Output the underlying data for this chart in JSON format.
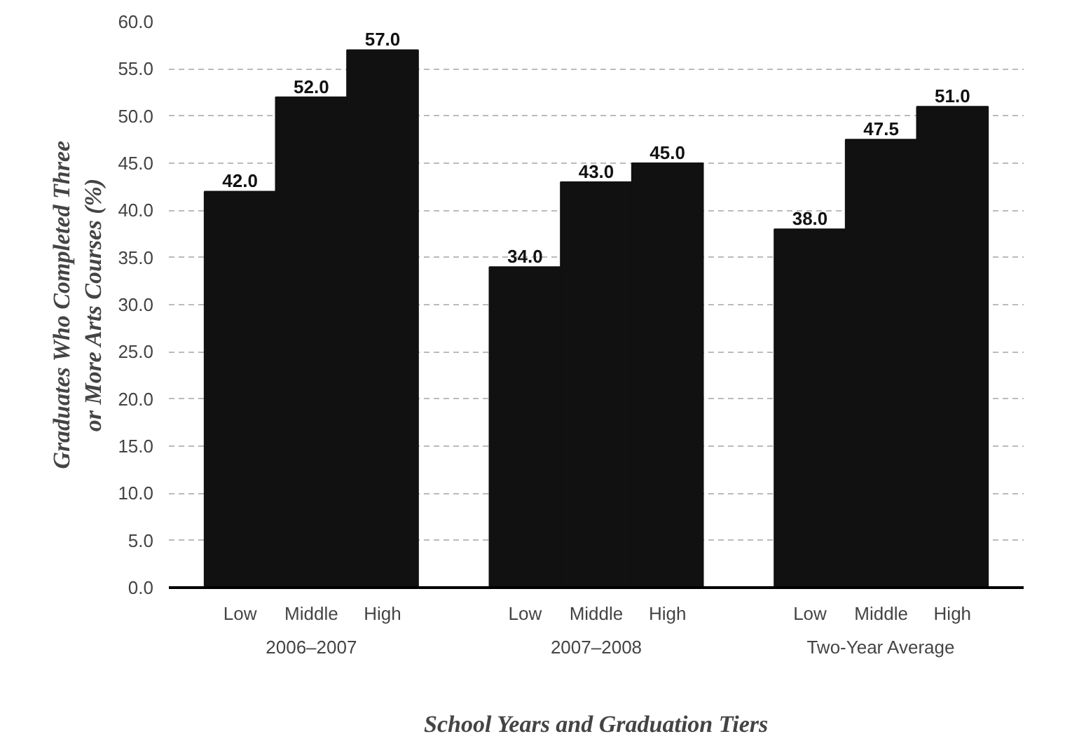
{
  "chart_data": {
    "type": "bar",
    "xlabel": "School Years and Graduation Tiers",
    "ylabel": "Graduates Who Completed Three\nor More Arts Courses (%)",
    "categories": [
      "Low",
      "Middle",
      "High",
      "Low",
      "Middle",
      "High",
      "Low",
      "Middle",
      "High"
    ],
    "values": [
      42.0,
      52.0,
      57.0,
      34.0,
      43.0,
      45.0,
      38.0,
      47.5,
      51.0
    ],
    "value_labels": [
      "42.0",
      "52.0",
      "57.0",
      "34.0",
      "43.0",
      "45.0",
      "38.0",
      "47.5",
      "51.0"
    ],
    "color": "#111111",
    "annotations": [
      "2006–2007",
      "2007–2008",
      "Two-Year Average"
    ],
    "ylim": [
      0,
      60
    ],
    "yticks": [
      {
        "value": 0,
        "label": "0.0"
      },
      {
        "value": 5,
        "label": "5.0"
      },
      {
        "value": 10,
        "label": "10.0"
      },
      {
        "value": 15,
        "label": "15.0"
      },
      {
        "value": 20,
        "label": "20.0"
      },
      {
        "value": 25,
        "label": "25.0"
      },
      {
        "value": 30,
        "label": "30.0"
      },
      {
        "value": 35,
        "label": "35.0"
      },
      {
        "value": 40,
        "label": "40.0"
      },
      {
        "value": 45,
        "label": "45.0"
      },
      {
        "value": 50,
        "label": "50.0"
      },
      {
        "value": 55,
        "label": "55.0"
      },
      {
        "value": 60,
        "label": "60.0"
      }
    ],
    "grid": "y"
  }
}
